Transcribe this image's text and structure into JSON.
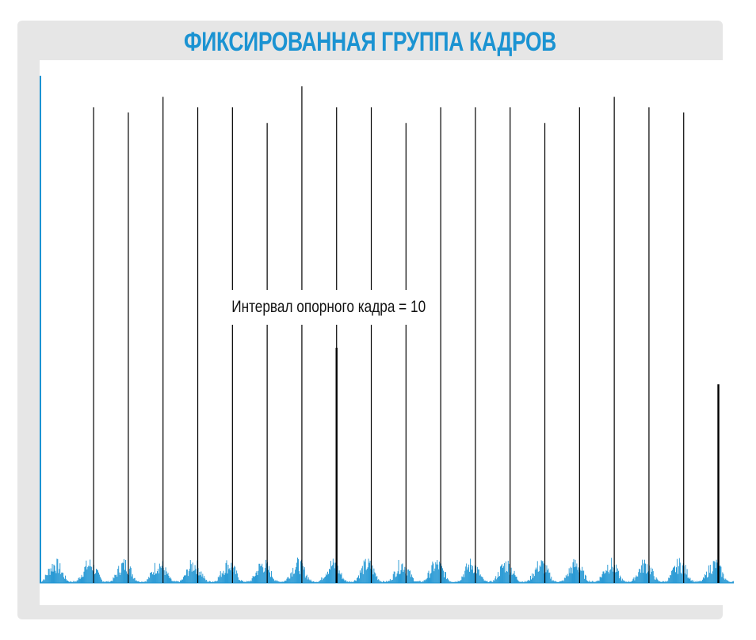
{
  "title": "ФИКСИРОВАННАЯ ГРУППА КАДРОВ",
  "annotation": "Интервал опорного кадра = 10",
  "colors": {
    "title": "#1b93d2",
    "background_panel": "#e6e6e6",
    "plot_background": "#ffffff",
    "frames": "#1b93d2",
    "markers": "#000000",
    "first_marker": "#1b93d2"
  },
  "chart_data": {
    "type": "bar",
    "title": "ФИКСИРОВАННАЯ ГРУППА КАДРОВ",
    "xlabel": "",
    "ylabel": "",
    "grid": false,
    "legend": "none",
    "description_note": "",
    "markers": {
      "frame_index": [
        0,
        70,
        115,
        160,
        205,
        250,
        295,
        340,
        385,
        430,
        475,
        520,
        565,
        610,
        655,
        700,
        745,
        790,
        835,
        880
      ],
      "height": [
        0.97,
        0.91,
        0.9,
        0.93,
        0.91,
        0.91,
        0.88,
        0.95,
        0.91,
        0.91,
        0.88,
        0.91,
        0.91,
        0.91,
        0.88,
        0.91,
        0.93,
        0.91,
        0.9,
        0.37
      ],
      "first_is_accent": true
    },
    "keyframes": {
      "frame_index": [
        385,
        880
      ],
      "height": [
        0.45,
        0.38
      ]
    },
    "frame_series": {
      "name": "",
      "frame_count": 900,
      "group_period": 45,
      "max_height": 0.05
    }
  }
}
